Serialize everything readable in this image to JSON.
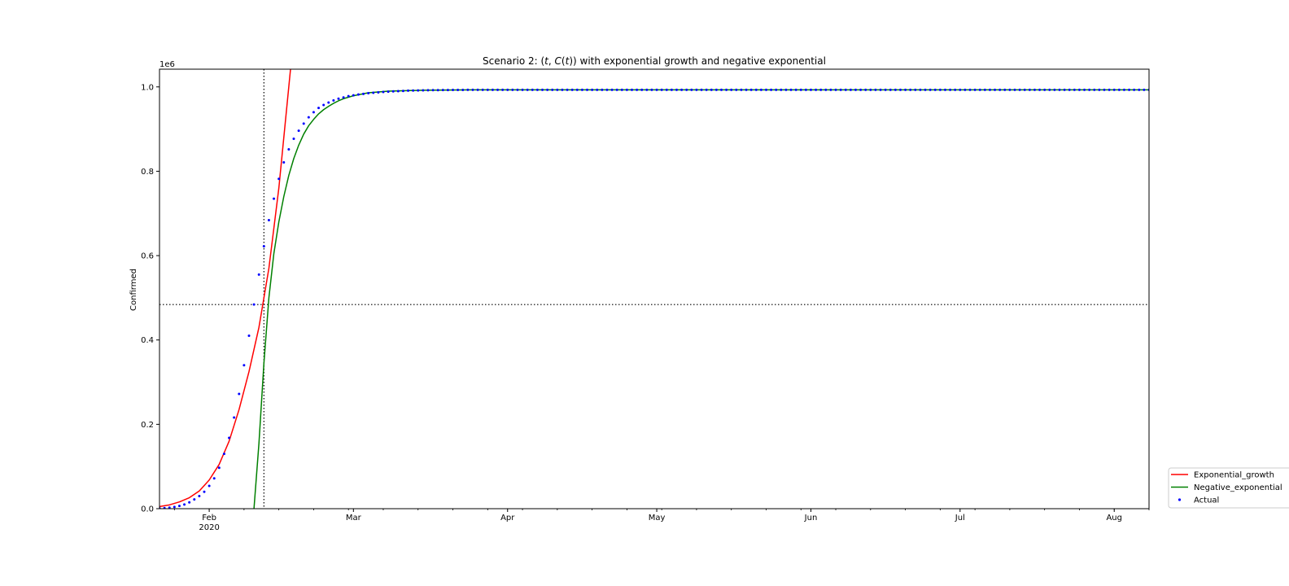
{
  "chart_data": {
    "type": "line",
    "title": "Scenario 2: (t, C(t)) with exponential growth and negative exponential",
    "title_parts": {
      "prefix": "Scenario 2: (",
      "t1": "t",
      "mid": ", ",
      "c": "C",
      "paren_open": "(",
      "t2": "t",
      "suffix": ")) with exponential growth and negative exponential"
    },
    "xlabel": "",
    "ylabel": "Confirmed",
    "y_offset_text": "1e6",
    "x_range": [
      "2020-01-22",
      "2020-08-08"
    ],
    "ylim": [
      0,
      1042000
    ],
    "grid": false,
    "legend_position": "right-bottom",
    "x_ticks": [
      {
        "date": "2020-02-01",
        "label": "Feb",
        "sublabel": "2020"
      },
      {
        "date": "2020-03-01",
        "label": "Mar",
        "sublabel": ""
      },
      {
        "date": "2020-04-01",
        "label": "Apr",
        "sublabel": ""
      },
      {
        "date": "2020-05-01",
        "label": "May",
        "sublabel": ""
      },
      {
        "date": "2020-06-01",
        "label": "Jun",
        "sublabel": ""
      },
      {
        "date": "2020-07-01",
        "label": "Jul",
        "sublabel": ""
      },
      {
        "date": "2020-08-01",
        "label": "Aug",
        "sublabel": ""
      }
    ],
    "y_ticks": [
      {
        "value": 0,
        "label": "0.0"
      },
      {
        "value": 200000,
        "label": "0.2"
      },
      {
        "value": 400000,
        "label": "0.4"
      },
      {
        "value": 600000,
        "label": "0.6"
      },
      {
        "value": 800000,
        "label": "0.8"
      },
      {
        "value": 1000000,
        "label": "1.0"
      }
    ],
    "reference_lines": {
      "vertical_date": "2020-02-12",
      "horizontal_value": 484000
    },
    "series": [
      {
        "name": "Exponential_growth",
        "color": "#ff0000",
        "style": "line",
        "points": [
          [
            "2020-01-22",
            5000
          ],
          [
            "2020-01-24",
            9000
          ],
          [
            "2020-01-26",
            16000
          ],
          [
            "2020-01-28",
            26000
          ],
          [
            "2020-01-30",
            42000
          ],
          [
            "2020-02-01",
            68000
          ],
          [
            "2020-02-03",
            105000
          ],
          [
            "2020-02-05",
            160000
          ],
          [
            "2020-02-07",
            235000
          ],
          [
            "2020-02-09",
            325000
          ],
          [
            "2020-02-11",
            430000
          ],
          [
            "2020-02-13",
            570000
          ],
          [
            "2020-02-15",
            760000
          ],
          [
            "2020-02-17",
            1000000
          ],
          [
            "2020-02-18",
            1120000
          ]
        ]
      },
      {
        "name": "Negative_exponential",
        "color": "#008000",
        "style": "line",
        "points": [
          [
            "2020-02-10",
            0
          ],
          [
            "2020-02-11",
            155000
          ],
          [
            "2020-02-12",
            345000
          ],
          [
            "2020-02-13",
            500000
          ],
          [
            "2020-02-14",
            605000
          ],
          [
            "2020-02-15",
            680000
          ],
          [
            "2020-02-16",
            740000
          ],
          [
            "2020-02-17",
            790000
          ],
          [
            "2020-02-18",
            830000
          ],
          [
            "2020-02-19",
            862000
          ],
          [
            "2020-02-20",
            888000
          ],
          [
            "2020-02-21",
            908000
          ],
          [
            "2020-02-22",
            923000
          ],
          [
            "2020-02-23",
            936000
          ],
          [
            "2020-02-24",
            946000
          ],
          [
            "2020-02-25",
            954000
          ],
          [
            "2020-02-26",
            961000
          ],
          [
            "2020-02-27",
            967000
          ],
          [
            "2020-02-28",
            972000
          ],
          [
            "2020-03-01",
            979000
          ],
          [
            "2020-03-04",
            986000
          ],
          [
            "2020-03-08",
            990000
          ],
          [
            "2020-03-15",
            992000
          ],
          [
            "2020-03-25",
            993000
          ],
          [
            "2020-04-15",
            993000
          ],
          [
            "2020-08-08",
            993000
          ]
        ]
      },
      {
        "name": "Actual",
        "color": "#0000ff",
        "style": "scatter",
        "start_date": "2020-01-22",
        "values": [
          1000,
          1500,
          2500,
          4000,
          6500,
          10000,
          15000,
          22000,
          30000,
          40000,
          54000,
          72000,
          97000,
          130000,
          168000,
          216000,
          272000,
          340000,
          410000,
          484000,
          555000,
          622000,
          684000,
          735000,
          782000,
          821000,
          852000,
          877000,
          896000,
          913000,
          928000,
          940000,
          950000,
          957000,
          963000,
          968000,
          972000,
          975000,
          978000,
          980000,
          982000,
          983500,
          985000,
          986000,
          987000,
          988000,
          988800,
          989500,
          990000,
          990500,
          991000,
          991300,
          991600,
          991800,
          992000,
          992200,
          992400,
          992500,
          992600,
          992700,
          992800,
          992900,
          993000,
          993000,
          993000,
          993000,
          993000,
          993000,
          993000,
          993000,
          993000,
          993000,
          993000,
          993000,
          993000,
          993000,
          993000,
          993000,
          993000,
          993000,
          993000,
          993000,
          993000,
          993000,
          993000,
          993000,
          993000,
          993000,
          993000,
          993000,
          993000,
          993000,
          993000,
          993000,
          993000,
          993000,
          993000,
          993000,
          993000,
          993000,
          993000,
          993000,
          993000,
          993000,
          993000,
          993000,
          993000,
          993000,
          993000,
          993000,
          993000,
          993000,
          993000,
          993000,
          993000,
          993000,
          993000,
          993000,
          993000,
          993000,
          993000,
          993000,
          993000,
          993000,
          993000,
          993000,
          993000,
          993000,
          993000,
          993000,
          993000,
          993000,
          993000,
          993000,
          993000,
          993000,
          993000,
          993000,
          993000,
          993000,
          993000,
          993000,
          993000,
          993000,
          993000,
          993000,
          993000,
          993000,
          993000,
          993000,
          993000,
          993000,
          993000,
          993000,
          993000,
          993000,
          993000,
          993000,
          993000,
          993000,
          993000,
          993000,
          993000,
          993000,
          993000,
          993000,
          993000,
          993000,
          993000,
          993000,
          993000,
          993000,
          993000,
          993000,
          993000,
          993000,
          993000,
          993000,
          993000,
          993000,
          993000,
          993000,
          993000,
          993000,
          993000,
          993000,
          993000,
          993000,
          993000,
          993000,
          993000,
          993000,
          993000,
          993000,
          993000,
          993000,
          993000,
          993000,
          993000,
          993000,
          993000,
          993000,
          993000,
          993000,
          993000,
          993000,
          993000,
          993000,
          993000,
          993000,
          993000,
          993000,
          993000
        ]
      }
    ],
    "legend": [
      {
        "label": "Exponential_growth",
        "color": "#ff0000",
        "marker": "line"
      },
      {
        "label": "Negative_exponential",
        "color": "#008000",
        "marker": "line"
      },
      {
        "label": "Actual",
        "color": "#0000ff",
        "marker": "dot"
      }
    ]
  }
}
